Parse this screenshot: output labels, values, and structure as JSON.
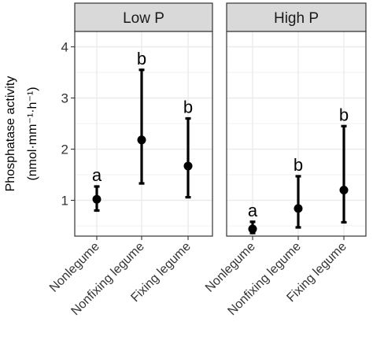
{
  "chart_data": {
    "type": "scatter",
    "ylabel_line1": "Phosphatase activity",
    "ylabel_line2": "(nmol·mm⁻¹·h⁻¹)",
    "ylim": [
      0.3,
      4.3
    ],
    "yticks": [
      1,
      2,
      3,
      4
    ],
    "categories": [
      "Nonlegume",
      "Nonfixing legume",
      "Fixing legume"
    ],
    "panels": [
      {
        "title": "Low P",
        "points": [
          {
            "category": "Nonlegume",
            "mean": 1.02,
            "lower": 0.8,
            "upper": 1.27,
            "letter": "a"
          },
          {
            "category": "Nonfixing legume",
            "mean": 2.18,
            "lower": 1.33,
            "upper": 3.55,
            "letter": "b"
          },
          {
            "category": "Fixing legume",
            "mean": 1.67,
            "lower": 1.06,
            "upper": 2.6,
            "letter": "b"
          }
        ]
      },
      {
        "title": "High P",
        "points": [
          {
            "category": "Nonlegume",
            "mean": 0.44,
            "lower": 0.36,
            "upper": 0.58,
            "letter": "a"
          },
          {
            "category": "Nonfixing legume",
            "mean": 0.84,
            "lower": 0.47,
            "upper": 1.47,
            "letter": "b"
          },
          {
            "category": "Fixing legume",
            "mean": 1.2,
            "lower": 0.57,
            "upper": 2.45,
            "letter": "b"
          }
        ]
      }
    ],
    "grid": true,
    "colors": {
      "strip_fill": "#d9d9d9",
      "grid": "#ebebeb",
      "points": "#000000",
      "border": "#333333"
    }
  }
}
